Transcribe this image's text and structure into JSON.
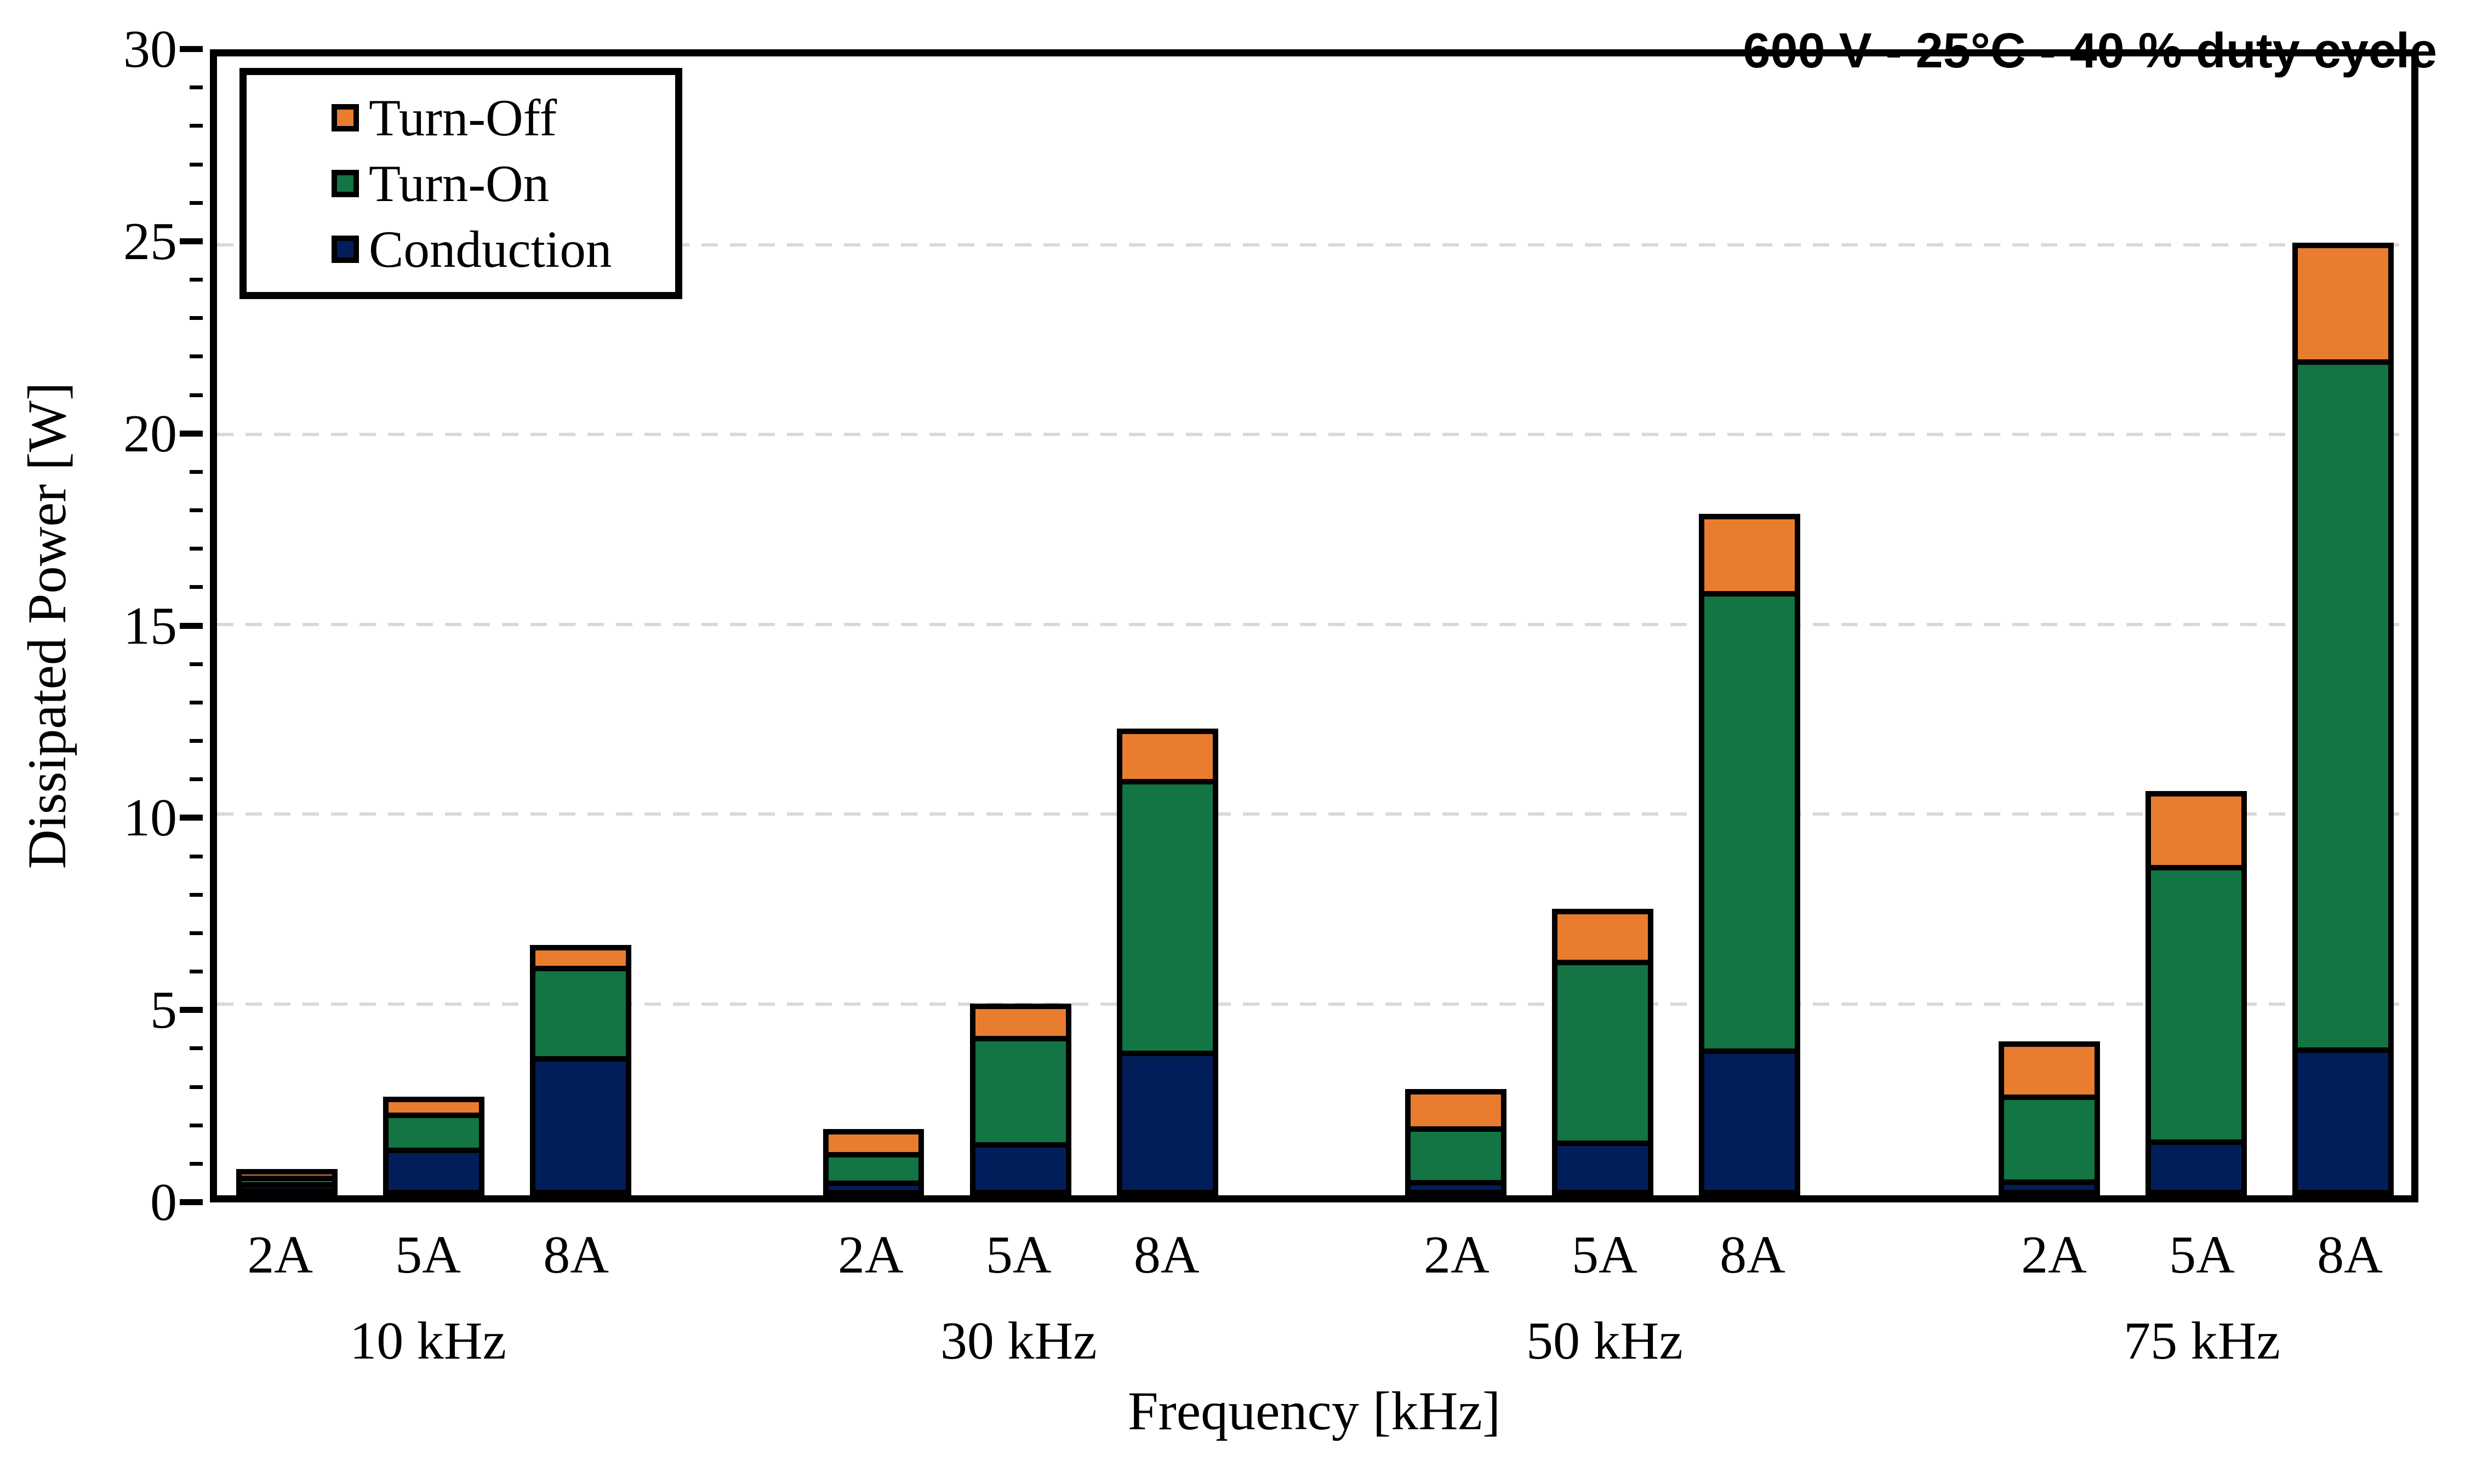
{
  "chart_data": {
    "type": "bar",
    "stacked": true,
    "title": "600 V - 25°C - 40 % duty cycle",
    "xlabel": "Frequency [kHz]",
    "ylabel": "Dissipated Power [W]",
    "ylim": [
      0,
      30
    ],
    "ytick_step": 5,
    "minor_tick_step": 1,
    "gridlines_at": [
      5,
      10,
      15,
      20,
      25
    ],
    "grid_on": true,
    "legend_position": "top-left",
    "series": [
      {
        "name": "Turn-Off",
        "key": "turn_off",
        "color": "#E87D2F"
      },
      {
        "name": "Turn-On",
        "key": "turn_on",
        "color": "#127543"
      },
      {
        "name": "Conduction",
        "key": "conduction",
        "color": "#021E5A"
      }
    ],
    "groups": [
      {
        "label": "10 kHz",
        "bars": [
          {
            "label": "2A",
            "conduction": 0.15,
            "turn_on": 0.3,
            "turn_off": 0.25
          },
          {
            "label": "5A",
            "conduction": 1.25,
            "turn_on": 1.0,
            "turn_off": 0.35
          },
          {
            "label": "8A",
            "conduction": 3.7,
            "turn_on": 2.45,
            "turn_off": 0.45
          }
        ]
      },
      {
        "label": "30 kHz",
        "bars": [
          {
            "label": "2A",
            "conduction": 0.15,
            "turn_on": 0.9,
            "turn_off": 0.7
          },
          {
            "label": "5A",
            "conduction": 1.25,
            "turn_on": 3.0,
            "turn_off": 0.8
          },
          {
            "label": "8A",
            "conduction": 3.7,
            "turn_on": 7.35,
            "turn_off": 1.25
          }
        ]
      },
      {
        "label": "50 kHz",
        "bars": [
          {
            "label": "2A",
            "conduction": 0.15,
            "turn_on": 1.6,
            "turn_off": 1.05
          },
          {
            "label": "5A",
            "conduction": 1.25,
            "turn_on": 5.0,
            "turn_off": 1.3
          },
          {
            "label": "8A",
            "conduction": 3.7,
            "turn_on": 12.3,
            "turn_off": 1.95
          }
        ]
      },
      {
        "label": "75 kHz",
        "bars": [
          {
            "label": "2A",
            "conduction": 0.15,
            "turn_on": 2.45,
            "turn_off": 1.45
          },
          {
            "label": "5A",
            "conduction": 1.25,
            "turn_on": 7.5,
            "turn_off": 1.9
          },
          {
            "label": "8A",
            "conduction": 3.7,
            "turn_on": 18.4,
            "turn_off": 3.0
          }
        ]
      }
    ],
    "layout_hints": {
      "group_center_pct": [
        9.88,
        36.62,
        63.15,
        90.2
      ],
      "bar_offset_pct": 6.7,
      "bar_width_pct": 4.615,
      "gridline_color": "#D9D9D9",
      "axis_color": "#000000"
    }
  }
}
